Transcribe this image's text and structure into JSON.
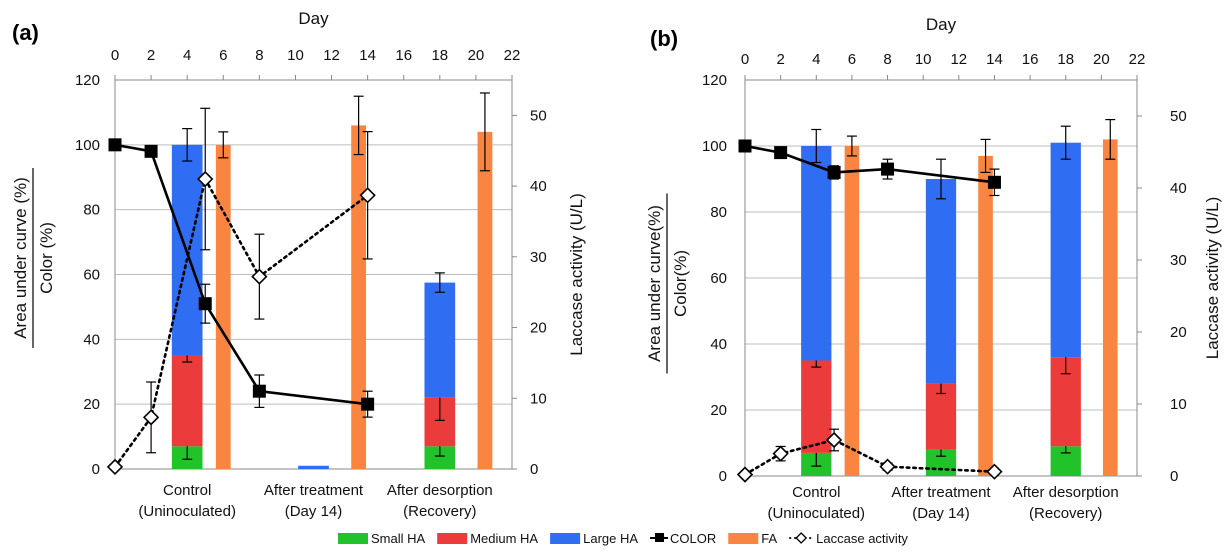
{
  "colors": {
    "small_ha": "#22c22a",
    "medium_ha": "#ec3b3b",
    "large_ha": "#2f6df2",
    "color_line": "#000000",
    "fa": "#f98540",
    "laccase": "#000000"
  },
  "legend": {
    "small_ha": "Small HA",
    "medium_ha": "Medium HA",
    "large_ha": "Large HA",
    "color": "COLOR",
    "fa": "FA",
    "laccase": "Laccase activity"
  },
  "chart_data": [
    {
      "panel": "(a)",
      "type": "bar",
      "top_axis_label": "Day",
      "top_axis_ticks": [
        0,
        2,
        4,
        6,
        8,
        10,
        12,
        14,
        16,
        18,
        20,
        22
      ],
      "xlim": [
        0,
        22
      ],
      "ylabel_top": "Area under curve (%)",
      "ylabel_bottom": "Color (%)",
      "ylim": [
        0,
        120
      ],
      "yticks": [
        0,
        20,
        40,
        60,
        80,
        100,
        120
      ],
      "y2label": "Laccase activity (U/L)",
      "y2lim": [
        0,
        55
      ],
      "y2ticks": [
        0,
        10,
        20,
        30,
        40,
        50
      ],
      "grid": true,
      "categories": [
        {
          "line1": "Control",
          "line2": "(Uninoculated)",
          "x": 4
        },
        {
          "line1": "After treatment",
          "line2": "(Day 14)",
          "x": 11
        },
        {
          "line1": "After desorption",
          "line2": "(Recovery)",
          "x": 18
        }
      ],
      "ha_bars": [
        {
          "x": 4,
          "small": 7,
          "small_err": 4,
          "medium": 28,
          "medium_err": 2,
          "large": 65,
          "large_err": 5
        },
        {
          "x": 11,
          "small": 0,
          "small_err": 0,
          "medium": 0,
          "medium_err": 0,
          "large": 1,
          "large_err": 0
        },
        {
          "x": 18,
          "small": 7,
          "small_err": 3,
          "medium": 15,
          "medium_err": 7,
          "large": 35.5,
          "large_err": 3
        }
      ],
      "fa_bars": [
        {
          "x": 6,
          "value": 100,
          "err": 4
        },
        {
          "x": 13.5,
          "value": 106,
          "err": 9
        },
        {
          "x": 20.5,
          "value": 104,
          "err": 12
        }
      ],
      "color_series": [
        {
          "x": 0,
          "y": 100,
          "err": 0
        },
        {
          "x": 2,
          "y": 98,
          "err": 0
        },
        {
          "x": 5,
          "y": 51,
          "err": 6
        },
        {
          "x": 8,
          "y": 24,
          "err": 5
        },
        {
          "x": 14,
          "y": 20,
          "err": 4
        }
      ],
      "laccase_series": [
        {
          "x": 0,
          "y": 0.3,
          "err": 0
        },
        {
          "x": 2,
          "y": 7.3,
          "err": 5
        },
        {
          "x": 5,
          "y": 41,
          "err": 10
        },
        {
          "x": 8,
          "y": 27.2,
          "err": 6
        },
        {
          "x": 14,
          "y": 38.7,
          "err": 9
        }
      ]
    },
    {
      "panel": "(b)",
      "type": "bar",
      "top_axis_label": "Day",
      "top_axis_ticks": [
        0,
        2,
        4,
        6,
        8,
        10,
        12,
        14,
        16,
        18,
        20,
        22
      ],
      "xlim": [
        0,
        22
      ],
      "ylabel_top": "Area under curve(%)",
      "ylabel_bottom": "Color(%)",
      "ylim": [
        0,
        120
      ],
      "yticks": [
        0,
        20,
        40,
        60,
        80,
        100,
        120
      ],
      "y2label": "Laccase activity (U/L)",
      "y2lim": [
        0,
        55
      ],
      "y2ticks": [
        0,
        10,
        20,
        30,
        40,
        50
      ],
      "grid": true,
      "categories": [
        {
          "line1": "Control",
          "line2": "(Uninoculated)",
          "x": 4
        },
        {
          "line1": "After treatment",
          "line2": "(Day 14)",
          "x": 11
        },
        {
          "line1": "After desorption",
          "line2": "(Recovery)",
          "x": 18
        }
      ],
      "ha_bars": [
        {
          "x": 4,
          "small": 7,
          "small_err": 4,
          "medium": 28,
          "medium_err": 2,
          "large": 65,
          "large_err": 5
        },
        {
          "x": 11,
          "small": 8,
          "small_err": 2,
          "medium": 20,
          "medium_err": 3,
          "large": 62,
          "large_err": 6
        },
        {
          "x": 18,
          "small": 9,
          "small_err": 2,
          "medium": 27,
          "medium_err": 5,
          "large": 65,
          "large_err": 5
        }
      ],
      "fa_bars": [
        {
          "x": 6,
          "value": 100,
          "err": 3
        },
        {
          "x": 13.5,
          "value": 97,
          "err": 5
        },
        {
          "x": 20.5,
          "value": 102,
          "err": 6
        }
      ],
      "color_series": [
        {
          "x": 0,
          "y": 100,
          "err": 0
        },
        {
          "x": 2,
          "y": 98,
          "err": 0
        },
        {
          "x": 5,
          "y": 92,
          "err": 2
        },
        {
          "x": 8,
          "y": 93,
          "err": 3
        },
        {
          "x": 14,
          "y": 89,
          "err": 4
        }
      ],
      "laccase_series": [
        {
          "x": 0,
          "y": 0.2,
          "err": 0
        },
        {
          "x": 2,
          "y": 3.1,
          "err": 1
        },
        {
          "x": 5,
          "y": 5,
          "err": 1.5
        },
        {
          "x": 8,
          "y": 1.3,
          "err": 0.5
        },
        {
          "x": 14,
          "y": 0.6,
          "err": 0.3
        }
      ]
    }
  ]
}
